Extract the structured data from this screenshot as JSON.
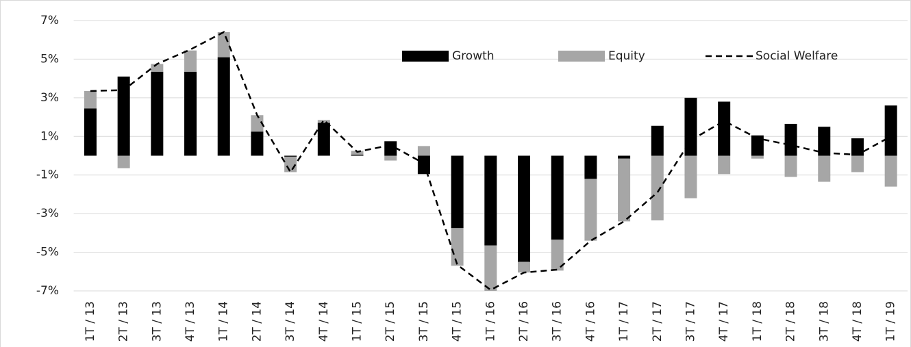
{
  "chart_data": {
    "type": "bar-line",
    "categories": [
      "1T / 13",
      "2T / 13",
      "3T / 13",
      "4T / 13",
      "1T / 14",
      "2T / 14",
      "3T / 14",
      "4T / 14",
      "1T / 15",
      "2T / 15",
      "3T / 15",
      "4T / 15",
      "1T / 16",
      "2T / 16",
      "3T / 16",
      "4T / 16",
      "1T / 17",
      "2T / 17",
      "3T / 17",
      "4T / 17",
      "1T / 18",
      "2T / 18",
      "3T / 18",
      "4T / 18",
      "1T / 19"
    ],
    "series": [
      {
        "name": "Growth",
        "color": "#000000",
        "kind": "bar",
        "values": [
          2.45,
          4.1,
          4.35,
          4.35,
          5.1,
          1.25,
          -0.05,
          1.7,
          0.05,
          0.75,
          -0.95,
          -3.75,
          -4.65,
          -5.5,
          -4.35,
          -1.2,
          -0.15,
          1.55,
          3.0,
          2.8,
          1.05,
          1.65,
          1.5,
          0.9,
          2.6
        ]
      },
      {
        "name": "Equity",
        "color": "#a6a6a6",
        "kind": "bar",
        "values": [
          0.9,
          -0.65,
          0.4,
          1.1,
          1.3,
          0.85,
          -0.8,
          0.15,
          0.2,
          -0.25,
          0.5,
          -1.95,
          -2.35,
          -0.55,
          -1.6,
          -3.2,
          -3.25,
          -3.35,
          -2.2,
          -0.95,
          -0.15,
          -1.1,
          -1.35,
          -0.85,
          -1.6
        ]
      },
      {
        "name": "Social Welfare",
        "color": "#000000",
        "kind": "line",
        "values": [
          3.35,
          3.4,
          4.75,
          5.5,
          6.4,
          2.1,
          -0.85,
          1.85,
          0.2,
          0.55,
          -0.4,
          -5.65,
          -6.95,
          -6.05,
          -5.9,
          -4.4,
          -3.4,
          -1.9,
          0.8,
          1.8,
          0.9,
          0.55,
          0.15,
          0.05,
          1.0
        ]
      }
    ],
    "ylim": [
      -7,
      7
    ],
    "yticks": [
      {
        "value": -7,
        "label": "-7%"
      },
      {
        "value": -5,
        "label": "-5%"
      },
      {
        "value": -3,
        "label": "-3%"
      },
      {
        "value": -1,
        "label": "-1%"
      },
      {
        "value": 1,
        "label": "1%"
      },
      {
        "value": 3,
        "label": "3%"
      },
      {
        "value": 5,
        "label": "5%"
      },
      {
        "value": 7,
        "label": "7%"
      }
    ],
    "grid": true
  }
}
